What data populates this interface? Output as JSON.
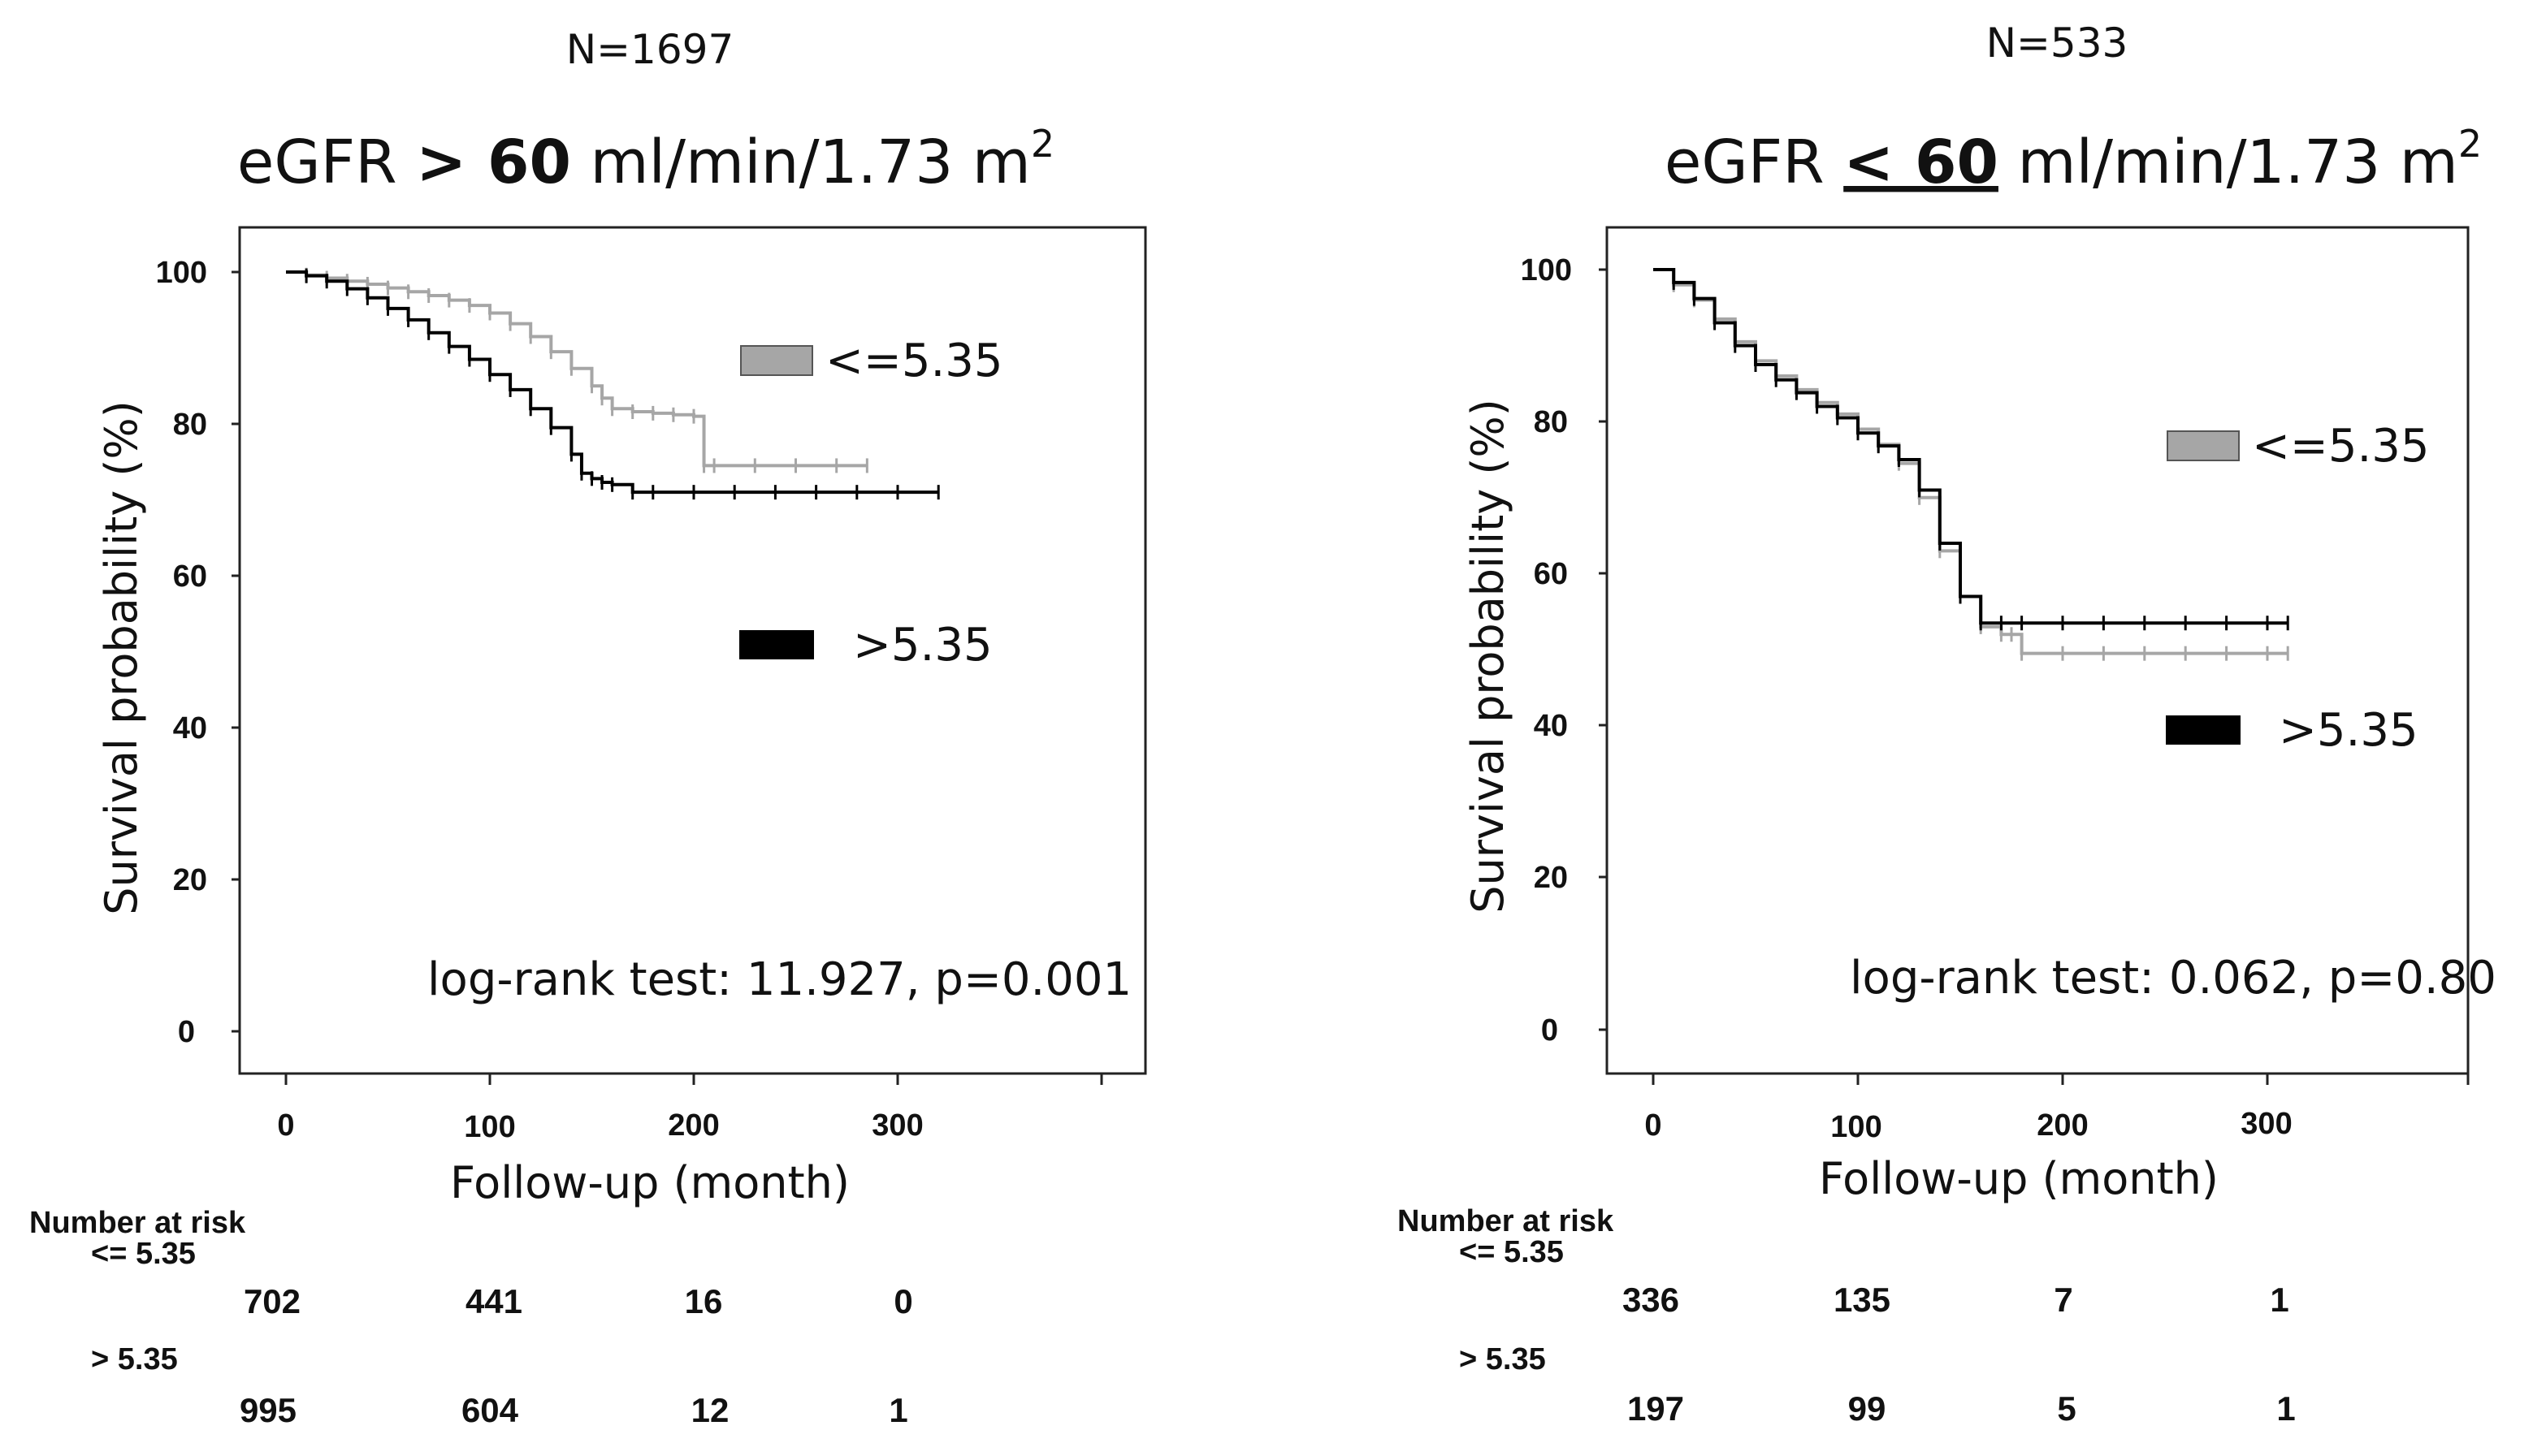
{
  "chart_data": [
    {
      "type": "line",
      "sample_size_label": "N=1697",
      "title_prefix": "eGFR ",
      "title_operator": "> 60",
      "title_units": " ml/min/1.73 m",
      "title_sup": "2",
      "xlabel": "Follow-up (month)",
      "ylabel": "Survival probability (%)",
      "xlim": [
        -25,
        340
      ],
      "ylim": [
        -5,
        105
      ],
      "xticks": [
        "0",
        "100",
        "200",
        "300"
      ],
      "yticks": [
        "0",
        "20",
        "40",
        "60",
        "80",
        "100"
      ],
      "legend": [
        {
          "label": "<=5.35",
          "color": "#a6a6a6"
        },
        {
          "label": ">5.35",
          "color": "#000000"
        }
      ],
      "annotation": "log-rank test: 11.927, p=0.001",
      "series": [
        {
          "name": "<=5.35",
          "color": "#a6a6a6",
          "x": [
            0,
            10,
            20,
            30,
            40,
            50,
            60,
            70,
            80,
            90,
            100,
            110,
            120,
            130,
            140,
            150,
            155,
            160,
            170,
            180,
            190,
            200,
            205,
            210,
            230,
            250,
            270,
            285
          ],
          "y": [
            100,
            99.6,
            99.2,
            98.8,
            98.4,
            97.9,
            97.4,
            96.9,
            96.3,
            95.6,
            94.6,
            93.2,
            91.5,
            89.5,
            87.3,
            85,
            83.4,
            82,
            81.6,
            81.4,
            81.2,
            81,
            74.5,
            74.5,
            74.5,
            74.5,
            74.5,
            74.5
          ]
        },
        {
          "name": ">5.35",
          "color": "#000000",
          "x": [
            0,
            10,
            20,
            30,
            40,
            50,
            60,
            70,
            80,
            90,
            100,
            110,
            120,
            130,
            140,
            145,
            150,
            155,
            160,
            170,
            180,
            200,
            220,
            240,
            260,
            280,
            300,
            320
          ],
          "y": [
            100,
            99.5,
            98.8,
            97.8,
            96.6,
            95.2,
            93.7,
            92,
            90.2,
            88.5,
            86.5,
            84.5,
            82,
            79.5,
            76,
            73.5,
            72.8,
            72.3,
            72,
            71,
            71,
            71,
            71,
            71,
            71,
            71,
            71,
            71
          ]
        }
      ],
      "number_at_risk": {
        "header": "Number at risk",
        "rows": [
          {
            "label": "<= 5.35",
            "values": [
              "702",
              "441",
              "16",
              "0"
            ]
          },
          {
            "label": "> 5.35",
            "values": [
              "995",
              "604",
              "12",
              "1"
            ]
          }
        ]
      }
    },
    {
      "type": "line",
      "sample_size_label": "N=533",
      "title_prefix": "eGFR ",
      "title_operator": "< 60",
      "title_units": " ml/min/1.73 m",
      "title_sup": "2",
      "xlabel": "Follow-up (month)",
      "ylabel": "Survival probability (%)",
      "xlim": [
        -25,
        400
      ],
      "ylim": [
        -5,
        105
      ],
      "xticks": [
        "0",
        "100",
        "200",
        "300"
      ],
      "yticks": [
        "0",
        "20",
        "40",
        "60",
        "80",
        "100"
      ],
      "legend": [
        {
          "label": "<=5.35",
          "color": "#a6a6a6"
        },
        {
          "label": ">5.35",
          "color": "#000000"
        }
      ],
      "annotation": "log-rank test: 0.062, p=0.80",
      "series": [
        {
          "name": "<=5.35",
          "color": "#a6a6a6",
          "x": [
            0,
            10,
            20,
            30,
            40,
            50,
            60,
            70,
            80,
            90,
            100,
            110,
            120,
            130,
            140,
            150,
            160,
            170,
            175,
            180,
            200,
            220,
            240,
            260,
            280,
            300,
            310
          ],
          "y": [
            100,
            98,
            96,
            93.5,
            90.5,
            88,
            86,
            84.2,
            82.5,
            81,
            79,
            77,
            74.5,
            70,
            63,
            57,
            53,
            52,
            52,
            49.5,
            49.5,
            49.5,
            49.5,
            49.5,
            49.5,
            49.5,
            49.5
          ]
        },
        {
          "name": ">5.35",
          "color": "#000000",
          "x": [
            0,
            10,
            20,
            30,
            40,
            50,
            60,
            70,
            80,
            90,
            100,
            110,
            120,
            130,
            140,
            150,
            160,
            170,
            180,
            200,
            220,
            240,
            260,
            280,
            300,
            310
          ],
          "y": [
            100,
            98.3,
            96.2,
            93,
            90,
            87.5,
            85.5,
            83.8,
            82,
            80.5,
            78.5,
            76.8,
            75,
            71,
            64,
            57,
            53.5,
            53.5,
            53.5,
            53.5,
            53.5,
            53.5,
            53.5,
            53.5,
            53.5,
            53.5
          ]
        }
      ],
      "number_at_risk": {
        "header": "Number at risk",
        "rows": [
          {
            "label": "<= 5.35",
            "values": [
              "336",
              "135",
              "7",
              "1"
            ]
          },
          {
            "label": "> 5.35",
            "values": [
              "197",
              "99",
              "5",
              "1"
            ]
          }
        ]
      }
    }
  ]
}
